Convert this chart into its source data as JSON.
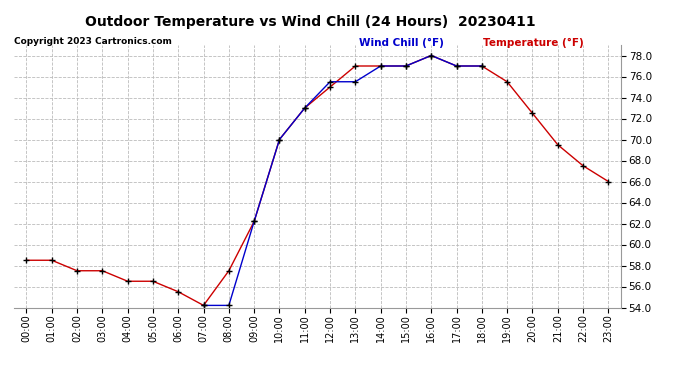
{
  "title": "Outdoor Temperature vs Wind Chill (24 Hours)  20230411",
  "copyright": "Copyright 2023 Cartronics.com",
  "legend_wind_chill": "Wind Chill (°F)",
  "legend_temperature": "Temperature (°F)",
  "hours": [
    "00:00",
    "01:00",
    "02:00",
    "03:00",
    "04:00",
    "05:00",
    "06:00",
    "07:00",
    "08:00",
    "09:00",
    "10:00",
    "11:00",
    "12:00",
    "13:00",
    "14:00",
    "15:00",
    "16:00",
    "17:00",
    "18:00",
    "19:00",
    "20:00",
    "21:00",
    "22:00",
    "23:00"
  ],
  "temperature": [
    58.5,
    58.5,
    57.5,
    57.5,
    56.5,
    56.5,
    55.5,
    54.2,
    57.5,
    62.2,
    70.0,
    73.0,
    75.0,
    77.0,
    77.0,
    77.0,
    78.0,
    77.0,
    77.0,
    75.5,
    72.5,
    69.5,
    67.5,
    66.0
  ],
  "wind_chill": [
    null,
    null,
    null,
    null,
    null,
    null,
    null,
    54.2,
    54.2,
    62.2,
    70.0,
    73.0,
    75.5,
    75.5,
    77.0,
    77.0,
    78.0,
    77.0,
    77.0,
    null,
    null,
    null,
    null,
    null
  ],
  "ylim_min": 54.0,
  "ylim_max": 79.0,
  "yticks": [
    54.0,
    56.0,
    58.0,
    60.0,
    62.0,
    64.0,
    66.0,
    68.0,
    70.0,
    72.0,
    74.0,
    76.0,
    78.0
  ],
  "temp_color": "#cc0000",
  "wind_color": "#0000cc",
  "bg_color": "#ffffff",
  "grid_color": "#bbbbbb",
  "title_color": "#000000",
  "copyright_color": "#000000",
  "marker": "+",
  "marker_color": "#000000",
  "marker_size": 5,
  "linewidth": 1.0
}
